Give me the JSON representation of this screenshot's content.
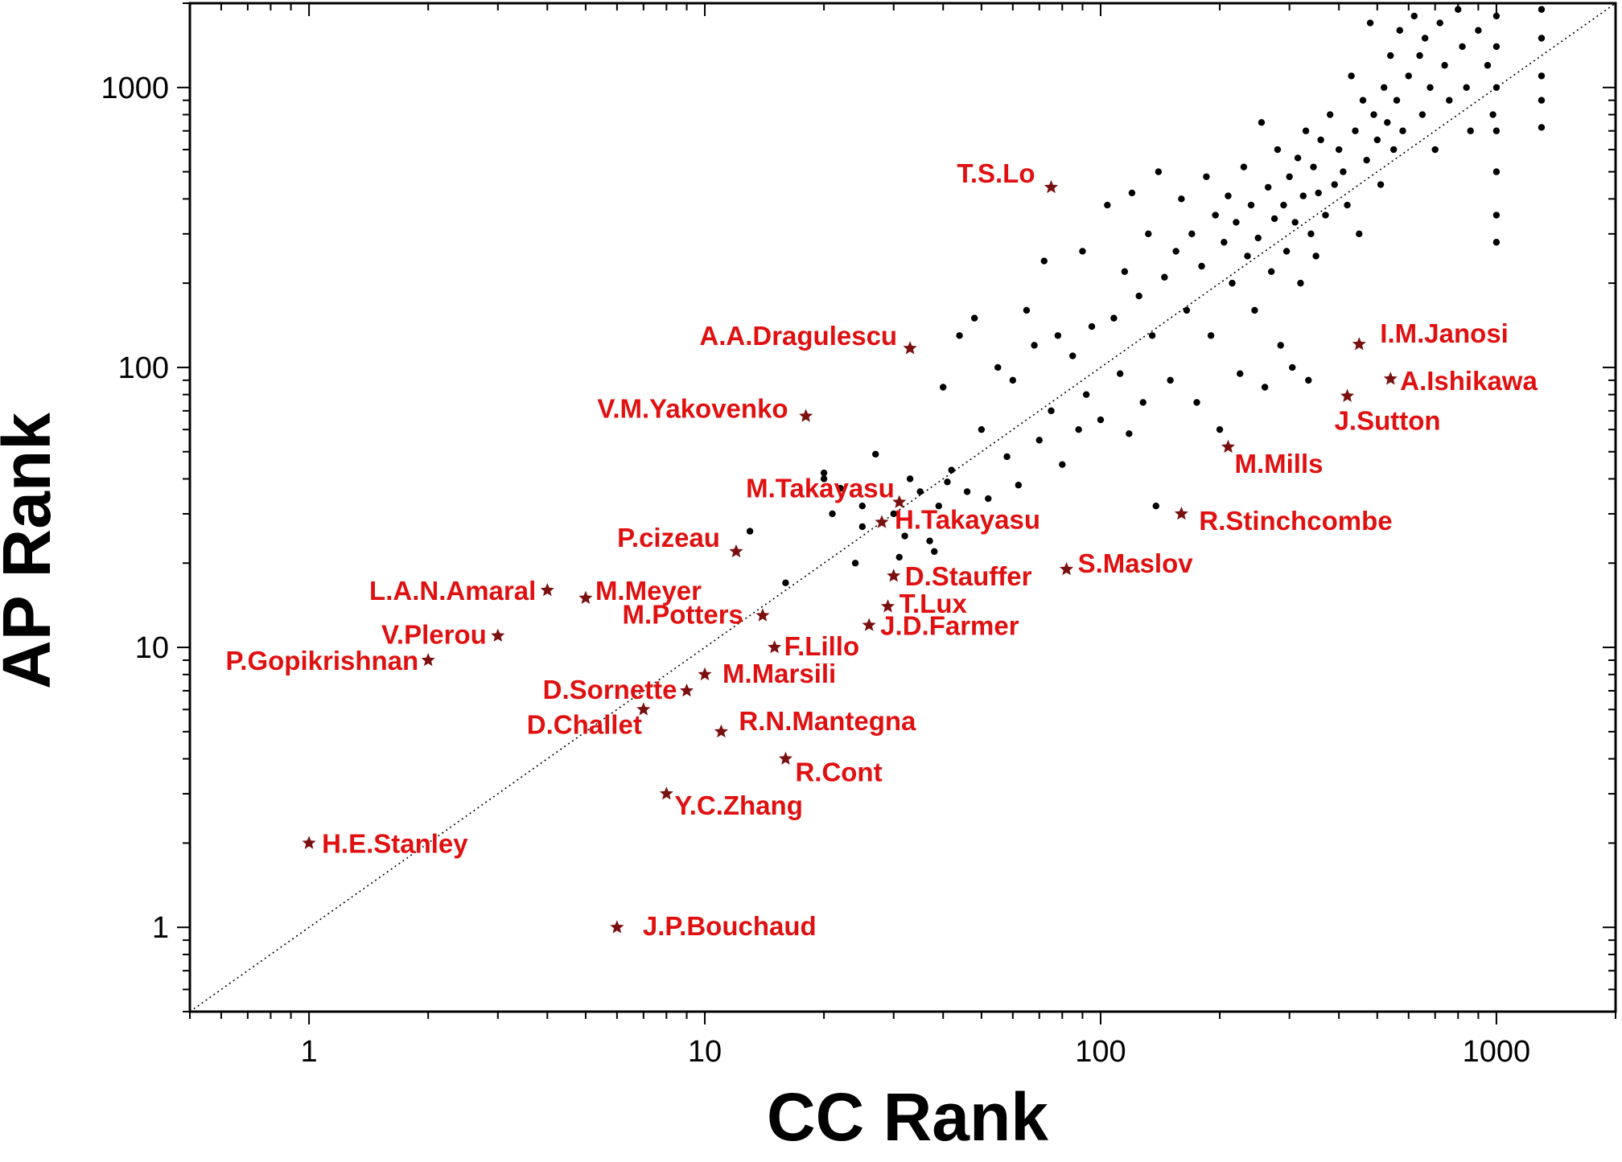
{
  "chart_data": {
    "type": "scatter",
    "xlabel": "CC Rank",
    "ylabel": "AP Rank",
    "x_scale": "log",
    "y_scale": "log",
    "xlim": [
      0.5,
      2000
    ],
    "ylim": [
      0.5,
      2000
    ],
    "x_ticks": [
      1,
      10,
      100,
      1000
    ],
    "y_ticks": [
      1,
      10,
      100,
      1000
    ],
    "grid": false,
    "reference_line": "y = x (dotted)",
    "colors": {
      "points": "#000000",
      "highlight_marker": "#7a1010",
      "highlight_label": "#e01010"
    },
    "highlighted_points": [
      {
        "name": "H.E.Stanley",
        "x": 1,
        "y": 2
      },
      {
        "name": "J.P.Bouchaud",
        "x": 6,
        "y": 1
      },
      {
        "name": "P.Gopikrishnan",
        "x": 2,
        "y": 9
      },
      {
        "name": "V.Plerou",
        "x": 3,
        "y": 11
      },
      {
        "name": "L.A.N.Amaral",
        "x": 4,
        "y": 16
      },
      {
        "name": "M.Meyer",
        "x": 5,
        "y": 15
      },
      {
        "name": "D.Challet",
        "x": 7,
        "y": 6
      },
      {
        "name": "Y.C.Zhang",
        "x": 8,
        "y": 3
      },
      {
        "name": "D.Sornette",
        "x": 9,
        "y": 7
      },
      {
        "name": "M.Marsili",
        "x": 10,
        "y": 8
      },
      {
        "name": "R.N.Mantegna",
        "x": 11,
        "y": 5
      },
      {
        "name": "P.cizeau",
        "x": 12,
        "y": 22
      },
      {
        "name": "M.Potters",
        "x": 14,
        "y": 13
      },
      {
        "name": "F.Lillo",
        "x": 15,
        "y": 10
      },
      {
        "name": "R.Cont",
        "x": 16,
        "y": 4
      },
      {
        "name": "V.M.Yakovenko",
        "x": 18,
        "y": 67
      },
      {
        "name": "J.D.Farmer",
        "x": 26,
        "y": 12
      },
      {
        "name": "H.Takayasu",
        "x": 28,
        "y": 28
      },
      {
        "name": "T.Lux",
        "x": 29,
        "y": 14
      },
      {
        "name": "D.Stauffer",
        "x": 30,
        "y": 18
      },
      {
        "name": "M.Takayasu",
        "x": 31,
        "y": 33
      },
      {
        "name": "A.A.Dragulescu",
        "x": 33,
        "y": 117
      },
      {
        "name": "T.S.Lo",
        "x": 75,
        "y": 440
      },
      {
        "name": "S.Maslov",
        "x": 82,
        "y": 19
      },
      {
        "name": "R.Stinchcombe",
        "x": 160,
        "y": 30
      },
      {
        "name": "M.Mills",
        "x": 210,
        "y": 52
      },
      {
        "name": "J.Sutton",
        "x": 420,
        "y": 79
      },
      {
        "name": "I.M.Janosi",
        "x": 450,
        "y": 121
      },
      {
        "name": "A.Ishikawa",
        "x": 540,
        "y": 91
      }
    ],
    "other_points": [
      [
        13,
        26
      ],
      [
        16,
        17
      ],
      [
        20,
        42
      ],
      [
        20,
        40
      ],
      [
        21,
        30
      ],
      [
        22,
        37
      ],
      [
        24,
        20
      ],
      [
        25,
        32
      ],
      [
        25,
        27
      ],
      [
        27,
        49
      ],
      [
        30,
        30
      ],
      [
        31,
        21
      ],
      [
        32,
        25
      ],
      [
        33,
        40
      ],
      [
        35,
        36
      ],
      [
        37,
        24
      ],
      [
        38,
        22
      ],
      [
        39,
        32
      ],
      [
        40,
        85
      ],
      [
        41,
        39
      ],
      [
        42,
        43
      ],
      [
        44,
        130
      ],
      [
        46,
        36
      ],
      [
        48,
        150
      ],
      [
        50,
        60
      ],
      [
        52,
        34
      ],
      [
        55,
        100
      ],
      [
        58,
        48
      ],
      [
        60,
        90
      ],
      [
        62,
        38
      ],
      [
        65,
        160
      ],
      [
        68,
        120
      ],
      [
        70,
        55
      ],
      [
        72,
        240
      ],
      [
        75,
        70
      ],
      [
        78,
        130
      ],
      [
        80,
        45
      ],
      [
        85,
        110
      ],
      [
        88,
        60
      ],
      [
        90,
        260
      ],
      [
        92,
        80
      ],
      [
        95,
        140
      ],
      [
        100,
        65
      ],
      [
        104,
        380
      ],
      [
        108,
        150
      ],
      [
        112,
        95
      ],
      [
        115,
        220
      ],
      [
        118,
        58
      ],
      [
        120,
        420
      ],
      [
        125,
        180
      ],
      [
        128,
        75
      ],
      [
        132,
        300
      ],
      [
        135,
        130
      ],
      [
        138,
        32
      ],
      [
        140,
        500
      ],
      [
        145,
        210
      ],
      [
        150,
        90
      ],
      [
        155,
        260
      ],
      [
        160,
        400
      ],
      [
        165,
        160
      ],
      [
        170,
        300
      ],
      [
        175,
        75
      ],
      [
        180,
        230
      ],
      [
        185,
        480
      ],
      [
        190,
        130
      ],
      [
        195,
        350
      ],
      [
        200,
        60
      ],
      [
        205,
        280
      ],
      [
        210,
        410
      ],
      [
        215,
        200
      ],
      [
        220,
        330
      ],
      [
        225,
        95
      ],
      [
        230,
        520
      ],
      [
        235,
        250
      ],
      [
        240,
        380
      ],
      [
        245,
        160
      ],
      [
        250,
        290
      ],
      [
        255,
        750
      ],
      [
        260,
        85
      ],
      [
        265,
        440
      ],
      [
        270,
        220
      ],
      [
        275,
        340
      ],
      [
        280,
        600
      ],
      [
        285,
        120
      ],
      [
        290,
        380
      ],
      [
        295,
        260
      ],
      [
        300,
        480
      ],
      [
        305,
        100
      ],
      [
        310,
        330
      ],
      [
        315,
        560
      ],
      [
        320,
        200
      ],
      [
        325,
        410
      ],
      [
        330,
        700
      ],
      [
        335,
        90
      ],
      [
        340,
        300
      ],
      [
        345,
        520
      ],
      [
        350,
        250
      ],
      [
        355,
        420
      ],
      [
        360,
        650
      ],
      [
        370,
        350
      ],
      [
        380,
        800
      ],
      [
        390,
        450
      ],
      [
        400,
        600
      ],
      [
        410,
        500
      ],
      [
        420,
        380
      ],
      [
        430,
        1100
      ],
      [
        440,
        700
      ],
      [
        450,
        300
      ],
      [
        460,
        900
      ],
      [
        470,
        550
      ],
      [
        480,
        1700
      ],
      [
        490,
        800
      ],
      [
        500,
        650
      ],
      [
        510,
        450
      ],
      [
        520,
        1000
      ],
      [
        530,
        750
      ],
      [
        540,
        1300
      ],
      [
        550,
        600
      ],
      [
        560,
        900
      ],
      [
        570,
        1600
      ],
      [
        580,
        700
      ],
      [
        600,
        1100
      ],
      [
        620,
        1800
      ],
      [
        640,
        1300
      ],
      [
        650,
        800
      ],
      [
        660,
        1500
      ],
      [
        680,
        1000
      ],
      [
        700,
        600
      ],
      [
        720,
        1700
      ],
      [
        740,
        1200
      ],
      [
        760,
        900
      ],
      [
        800,
        1900
      ],
      [
        820,
        1400
      ],
      [
        840,
        1000
      ],
      [
        860,
        700
      ],
      [
        900,
        1600
      ],
      [
        950,
        1200
      ],
      [
        980,
        800
      ],
      [
        1000,
        1800
      ],
      [
        1000,
        1400
      ],
      [
        1000,
        1000
      ],
      [
        1000,
        700
      ],
      [
        1000,
        500
      ],
      [
        1000,
        350
      ],
      [
        1000,
        280
      ],
      [
        1300,
        1900
      ],
      [
        1300,
        1500
      ],
      [
        1300,
        1100
      ],
      [
        1300,
        900
      ],
      [
        1300,
        720
      ]
    ]
  }
}
